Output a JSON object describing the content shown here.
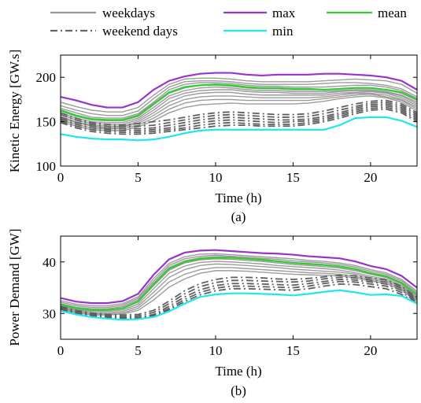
{
  "legend": [
    {
      "label": "weekdays",
      "color": "#999999",
      "dash": "solid"
    },
    {
      "label": "max",
      "color": "#9a33cc",
      "dash": "solid"
    },
    {
      "label": "mean",
      "color": "#33cc33",
      "dash": "solid"
    },
    {
      "label": "weekend days",
      "color": "#666666",
      "dash": "dashdot"
    },
    {
      "label": "min",
      "color": "#22e5f0",
      "dash": "solid"
    }
  ],
  "chart_data": [
    {
      "type": "line",
      "panel_label": "(a)",
      "xlabel": "Time (h)",
      "ylabel": "Kinetic Energy [GW.s]",
      "xlim": [
        0,
        23
      ],
      "ylim": [
        100,
        225
      ],
      "xticks": [
        0,
        5,
        10,
        15,
        20
      ],
      "yticks": [
        100,
        150,
        200
      ],
      "x": [
        0,
        1,
        2,
        3,
        4,
        5,
        6,
        7,
        8,
        9,
        10,
        11,
        12,
        13,
        14,
        15,
        16,
        17,
        18,
        19,
        20,
        21,
        22,
        23
      ],
      "series": [
        {
          "name": "max",
          "color": "#9a33cc",
          "width": 2.2,
          "dash": "",
          "values": [
            178,
            174,
            169,
            166,
            166,
            172,
            186,
            196,
            201,
            204,
            205,
            205,
            203,
            202,
            203,
            203,
            203,
            204,
            204,
            203,
            202,
            200,
            196,
            186
          ]
        },
        {
          "name": "mean",
          "color": "#33cc33",
          "width": 2.2,
          "dash": "",
          "values": [
            163,
            157,
            153,
            152,
            152,
            157,
            170,
            183,
            189,
            191,
            192,
            191,
            189,
            188,
            188,
            187,
            187,
            186,
            187,
            188,
            188,
            186,
            183,
            175
          ]
        },
        {
          "name": "min",
          "color": "#22e5f0",
          "width": 2.2,
          "dash": "",
          "values": [
            136,
            133,
            131,
            130,
            130,
            129,
            130,
            133,
            137,
            140,
            141,
            141,
            141,
            141,
            141,
            141,
            141,
            141,
            146,
            154,
            155,
            155,
            151,
            144
          ]
        }
      ],
      "weekday_series": [
        [
          172,
          167,
          163,
          161,
          161,
          166,
          180,
          192,
          198,
          199,
          199,
          198,
          196,
          195,
          195,
          195,
          195,
          196,
          197,
          198,
          197,
          196,
          192,
          182
        ],
        [
          168,
          163,
          159,
          157,
          157,
          162,
          176,
          189,
          195,
          196,
          196,
          195,
          193,
          192,
          192,
          192,
          192,
          193,
          194,
          194,
          193,
          191,
          187,
          178
        ],
        [
          165,
          160,
          155,
          154,
          154,
          159,
          172,
          186,
          192,
          194,
          194,
          193,
          191,
          190,
          190,
          189,
          189,
          189,
          190,
          191,
          191,
          189,
          185,
          176
        ],
        [
          162,
          156,
          152,
          151,
          151,
          156,
          169,
          182,
          188,
          191,
          191,
          190,
          188,
          187,
          187,
          186,
          186,
          186,
          187,
          188,
          188,
          186,
          182,
          174
        ],
        [
          160,
          154,
          150,
          149,
          149,
          154,
          166,
          179,
          185,
          188,
          189,
          188,
          186,
          185,
          185,
          184,
          184,
          184,
          185,
          186,
          186,
          184,
          180,
          172
        ],
        [
          158,
          152,
          148,
          147,
          147,
          152,
          163,
          176,
          182,
          185,
          186,
          186,
          184,
          183,
          183,
          182,
          182,
          182,
          184,
          185,
          185,
          183,
          179,
          170
        ],
        [
          156,
          150,
          146,
          145,
          145,
          150,
          160,
          172,
          179,
          182,
          183,
          183,
          181,
          180,
          180,
          180,
          180,
          180,
          182,
          183,
          184,
          182,
          177,
          168
        ],
        [
          154,
          149,
          145,
          143,
          144,
          148,
          157,
          168,
          175,
          178,
          179,
          179,
          178,
          177,
          177,
          177,
          177,
          178,
          180,
          182,
          182,
          180,
          175,
          166
        ],
        [
          152,
          147,
          143,
          142,
          142,
          146,
          154,
          164,
          171,
          174,
          175,
          175,
          174,
          174,
          174,
          174,
          174,
          176,
          178,
          180,
          181,
          178,
          174,
          164
        ],
        [
          150,
          145,
          141,
          140,
          140,
          144,
          151,
          160,
          166,
          169,
          170,
          171,
          170,
          170,
          170,
          170,
          171,
          173,
          176,
          178,
          179,
          177,
          172,
          162
        ]
      ],
      "weekend_series": [
        [
          160,
          154,
          149,
          147,
          146,
          148,
          150,
          152,
          155,
          158,
          160,
          161,
          160,
          159,
          158,
          158,
          159,
          162,
          166,
          170,
          173,
          174,
          170,
          160
        ],
        [
          158,
          152,
          147,
          145,
          144,
          145,
          146,
          149,
          152,
          155,
          157,
          158,
          157,
          156,
          155,
          155,
          156,
          159,
          163,
          167,
          171,
          172,
          168,
          158
        ],
        [
          155,
          149,
          145,
          143,
          142,
          142,
          143,
          146,
          149,
          152,
          154,
          155,
          154,
          153,
          152,
          152,
          153,
          156,
          160,
          165,
          169,
          170,
          166,
          156
        ],
        [
          153,
          147,
          143,
          141,
          140,
          140,
          141,
          143,
          146,
          149,
          151,
          152,
          151,
          150,
          149,
          150,
          151,
          154,
          158,
          163,
          167,
          168,
          164,
          154
        ],
        [
          151,
          145,
          141,
          139,
          138,
          138,
          139,
          141,
          143,
          146,
          148,
          149,
          148,
          147,
          147,
          147,
          149,
          152,
          156,
          161,
          165,
          166,
          162,
          152
        ],
        [
          149,
          143,
          139,
          137,
          136,
          136,
          137,
          139,
          141,
          143,
          145,
          146,
          146,
          145,
          145,
          145,
          147,
          150,
          154,
          159,
          163,
          164,
          160,
          150
        ]
      ]
    },
    {
      "type": "line",
      "panel_label": "(b)",
      "xlabel": "Time (h)",
      "ylabel": "Power Demand [GW]",
      "xlim": [
        0,
        23
      ],
      "ylim": [
        25,
        45
      ],
      "xticks": [
        0,
        5,
        10,
        15,
        20
      ],
      "yticks": [
        30,
        40
      ],
      "x": [
        0,
        1,
        2,
        3,
        4,
        5,
        6,
        7,
        8,
        9,
        10,
        11,
        12,
        13,
        14,
        15,
        16,
        17,
        18,
        19,
        20,
        21,
        22,
        23
      ],
      "series": [
        {
          "name": "max",
          "color": "#9a33cc",
          "width": 2.2,
          "dash": "",
          "values": [
            33.0,
            32.3,
            32.0,
            32.0,
            32.4,
            33.8,
            37.5,
            40.5,
            41.8,
            42.2,
            42.3,
            42.1,
            41.9,
            41.7,
            41.6,
            41.4,
            41.1,
            40.9,
            40.7,
            40.1,
            39.2,
            38.6,
            37.3,
            35.0
          ]
        },
        {
          "name": "mean",
          "color": "#33cc33",
          "width": 2.2,
          "dash": "",
          "values": [
            31.8,
            31.0,
            30.7,
            30.7,
            31.0,
            32.3,
            35.6,
            38.7,
            40.0,
            40.6,
            40.8,
            40.8,
            40.6,
            40.4,
            40.1,
            39.8,
            39.6,
            39.4,
            39.1,
            38.6,
            37.8,
            37.2,
            35.9,
            33.6
          ]
        },
        {
          "name": "min",
          "color": "#22e5f0",
          "width": 2.2,
          "dash": "",
          "values": [
            30.5,
            29.8,
            29.3,
            29.0,
            28.8,
            28.9,
            29.3,
            30.4,
            31.9,
            33.2,
            33.7,
            33.9,
            33.9,
            33.8,
            33.7,
            33.5,
            33.8,
            34.2,
            34.5,
            34.1,
            33.6,
            33.7,
            33.4,
            31.9
          ]
        }
      ],
      "weekday_series": [
        [
          32.5,
          31.8,
          31.5,
          31.5,
          31.9,
          33.2,
          36.8,
          39.7,
          41.0,
          41.5,
          41.6,
          41.4,
          41.2,
          41.0,
          40.8,
          40.6,
          40.3,
          40.1,
          39.8,
          39.3,
          38.5,
          37.9,
          36.6,
          34.3
        ],
        [
          32.2,
          31.5,
          31.2,
          31.2,
          31.6,
          32.9,
          36.3,
          39.3,
          40.6,
          41.1,
          41.3,
          41.1,
          40.9,
          40.7,
          40.5,
          40.2,
          40.0,
          39.8,
          39.5,
          39.0,
          38.2,
          37.6,
          36.3,
          34.0
        ],
        [
          31.9,
          31.2,
          30.9,
          30.9,
          31.3,
          32.6,
          35.9,
          38.9,
          40.2,
          40.8,
          41.0,
          40.9,
          40.7,
          40.5,
          40.2,
          39.9,
          39.7,
          39.5,
          39.2,
          38.7,
          37.9,
          37.3,
          36.0,
          33.7
        ],
        [
          31.6,
          30.9,
          30.6,
          30.6,
          31.0,
          32.2,
          35.4,
          38.4,
          39.8,
          40.4,
          40.6,
          40.5,
          40.3,
          40.1,
          39.8,
          39.5,
          39.3,
          39.1,
          38.8,
          38.3,
          37.6,
          37.0,
          35.7,
          33.4
        ],
        [
          31.4,
          30.7,
          30.4,
          30.4,
          30.7,
          31.8,
          34.8,
          37.8,
          39.2,
          39.9,
          40.1,
          40.0,
          39.8,
          39.6,
          39.3,
          39.1,
          38.9,
          38.7,
          38.4,
          37.9,
          37.2,
          36.7,
          35.4,
          33.1
        ],
        [
          31.2,
          30.5,
          30.1,
          30.1,
          30.4,
          31.4,
          34.1,
          37.0,
          38.5,
          39.3,
          39.6,
          39.5,
          39.3,
          39.1,
          38.9,
          38.6,
          38.4,
          38.2,
          38.0,
          37.6,
          36.9,
          36.4,
          35.1,
          32.9
        ],
        [
          31.0,
          30.3,
          29.9,
          29.9,
          30.1,
          31.0,
          33.4,
          36.1,
          37.6,
          38.5,
          38.9,
          38.9,
          38.7,
          38.5,
          38.3,
          38.1,
          37.9,
          37.8,
          37.6,
          37.2,
          36.6,
          36.1,
          34.8,
          32.6
        ],
        [
          30.8,
          30.1,
          29.7,
          29.7,
          29.9,
          30.6,
          32.6,
          35.1,
          36.7,
          37.8,
          38.3,
          38.3,
          38.2,
          38.0,
          37.8,
          37.6,
          37.5,
          37.4,
          37.3,
          36.9,
          36.3,
          35.8,
          34.5,
          32.4
        ]
      ],
      "weekend_series": [
        [
          31.4,
          30.6,
          30.1,
          29.8,
          29.7,
          29.8,
          30.6,
          32.4,
          34.4,
          35.8,
          36.6,
          37.0,
          37.0,
          36.9,
          36.7,
          36.6,
          36.8,
          37.1,
          37.4,
          37.3,
          36.9,
          36.5,
          35.3,
          33.1
        ],
        [
          31.2,
          30.4,
          29.9,
          29.6,
          29.4,
          29.5,
          30.2,
          31.9,
          33.8,
          35.2,
          36.0,
          36.4,
          36.4,
          36.3,
          36.2,
          36.1,
          36.3,
          36.7,
          37.0,
          36.9,
          36.5,
          36.1,
          34.9,
          32.8
        ],
        [
          31.0,
          30.2,
          29.7,
          29.4,
          29.2,
          29.2,
          29.8,
          31.4,
          33.2,
          34.6,
          35.4,
          35.8,
          35.8,
          35.7,
          35.6,
          35.5,
          35.8,
          36.2,
          36.6,
          36.5,
          36.1,
          35.7,
          34.5,
          32.5
        ],
        [
          30.9,
          30.1,
          29.6,
          29.3,
          29.1,
          29.1,
          29.6,
          31.0,
          32.7,
          34.1,
          34.9,
          35.3,
          35.3,
          35.2,
          35.1,
          35.0,
          35.3,
          35.8,
          36.2,
          36.1,
          35.7,
          35.3,
          34.1,
          32.2
        ],
        [
          30.7,
          30.0,
          29.5,
          29.2,
          29.0,
          29.0,
          29.4,
          30.7,
          32.3,
          33.6,
          34.4,
          34.8,
          34.8,
          34.7,
          34.6,
          34.5,
          34.8,
          35.3,
          35.7,
          35.6,
          35.2,
          34.8,
          33.7,
          32.0
        ]
      ]
    }
  ]
}
